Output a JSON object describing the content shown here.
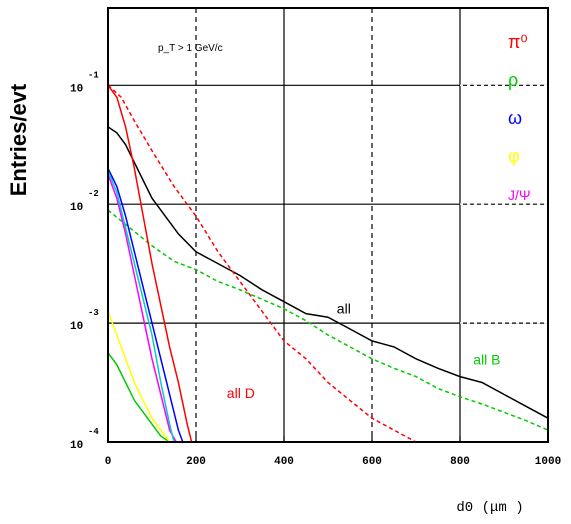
{
  "chart_data": {
    "type": "line",
    "title": "",
    "xlabel": "d0  (μm )",
    "ylabel": "Entries/evt",
    "xlim": [
      0,
      1000
    ],
    "ylim_log10": [
      -4,
      -0.35
    ],
    "y_scale": "log",
    "grid": true,
    "x_ticks": [
      "0",
      "200",
      "400",
      "600",
      "800",
      "1000"
    ],
    "y_ticks": [
      {
        "value": -4,
        "mantissa": "10",
        "exponent": "-4"
      },
      {
        "value": -3,
        "mantissa": "10",
        "exponent": "-3"
      },
      {
        "value": -2,
        "mantissa": "10",
        "exponent": "-2"
      },
      {
        "value": -1,
        "mantissa": "10",
        "exponent": "-1"
      }
    ],
    "cut_label": "p_T > 1 GeV/c",
    "legend": [
      {
        "label": "π⁰",
        "color": "#ff0000"
      },
      {
        "label": "ρ",
        "color": "#00cc00"
      },
      {
        "label": "ω",
        "color": "#0000ff"
      },
      {
        "label": "φ",
        "color": "#ffff00"
      },
      {
        "label": "J/Ψ",
        "color": "#ff00ff"
      }
    ],
    "series": [
      {
        "name": "all",
        "color": "#000000",
        "dash": "",
        "x": [
          0,
          20,
          40,
          60,
          80,
          100,
          130,
          160,
          200,
          250,
          300,
          350,
          400,
          450,
          500,
          550,
          600,
          650,
          700,
          750,
          800,
          850,
          900,
          950,
          1000
        ],
        "y": [
          -1.35,
          -1.4,
          -1.5,
          -1.65,
          -1.8,
          -1.95,
          -2.1,
          -2.25,
          -2.4,
          -2.5,
          -2.6,
          -2.72,
          -2.82,
          -2.92,
          -2.95,
          -3.05,
          -3.15,
          -3.2,
          -3.3,
          -3.38,
          -3.45,
          -3.5,
          -3.6,
          -3.7,
          -3.8
        ]
      },
      {
        "name": "all B",
        "color": "#00cc00",
        "dash": "4,3",
        "x": [
          0,
          50,
          100,
          150,
          200,
          250,
          300,
          350,
          400,
          450,
          500,
          550,
          600,
          650,
          700,
          750,
          800,
          850,
          900,
          950,
          1000
        ],
        "y": [
          -2.05,
          -2.2,
          -2.35,
          -2.48,
          -2.55,
          -2.65,
          -2.72,
          -2.8,
          -2.88,
          -2.98,
          -3.1,
          -3.2,
          -3.3,
          -3.38,
          -3.45,
          -3.55,
          -3.62,
          -3.68,
          -3.75,
          -3.82,
          -3.9
        ]
      },
      {
        "name": "all D",
        "color": "#ff0000",
        "dash": "4,3",
        "x": [
          0,
          30,
          60,
          100,
          150,
          200,
          250,
          300,
          350,
          400,
          450,
          500,
          550,
          600,
          650,
          700
        ],
        "y": [
          -1.0,
          -1.1,
          -1.3,
          -1.55,
          -1.85,
          -2.1,
          -2.4,
          -2.65,
          -2.9,
          -3.15,
          -3.3,
          -3.5,
          -3.65,
          -3.8,
          -3.9,
          -4.0
        ]
      },
      {
        "name": "π⁰",
        "color": "#ff0000",
        "dash": "",
        "x": [
          0,
          20,
          40,
          60,
          80,
          100,
          120,
          140,
          160,
          180,
          190
        ],
        "y": [
          -1.0,
          -1.1,
          -1.35,
          -1.7,
          -2.1,
          -2.5,
          -2.85,
          -3.2,
          -3.5,
          -3.85,
          -4.0
        ]
      },
      {
        "name": "ρ",
        "color": "#00cc00",
        "dash": "",
        "x": [
          0,
          20,
          40,
          60,
          80,
          100,
          120,
          140
        ],
        "y": [
          -3.25,
          -3.35,
          -3.5,
          -3.65,
          -3.75,
          -3.85,
          -3.95,
          -4.0
        ]
      },
      {
        "name": "ω",
        "color": "#0000ff",
        "dash": "",
        "x": [
          0,
          20,
          40,
          60,
          80,
          100,
          120,
          140,
          160,
          170
        ],
        "y": [
          -1.7,
          -1.85,
          -2.1,
          -2.4,
          -2.7,
          -3.0,
          -3.3,
          -3.6,
          -3.9,
          -4.0
        ]
      },
      {
        "name": "φ",
        "color": "#ffff00",
        "dash": "",
        "x": [
          0,
          20,
          40,
          60,
          80,
          100,
          120,
          140
        ],
        "y": [
          -2.9,
          -3.1,
          -3.3,
          -3.5,
          -3.65,
          -3.8,
          -3.9,
          -4.0
        ]
      },
      {
        "name": "J/Ψ",
        "color": "#ff00ff",
        "dash": "",
        "x": [
          0,
          20,
          40,
          60,
          80,
          100,
          120,
          140,
          155
        ],
        "y": [
          -1.75,
          -1.95,
          -2.25,
          -2.6,
          -2.95,
          -3.3,
          -3.6,
          -3.9,
          -4.0
        ]
      },
      {
        "name": "cyan",
        "color": "#00cccc",
        "dash": "",
        "x": [
          0,
          20,
          40,
          60,
          80,
          100,
          120,
          140,
          150
        ],
        "y": [
          -1.72,
          -1.9,
          -2.2,
          -2.5,
          -2.8,
          -3.1,
          -3.5,
          -3.85,
          -4.0
        ]
      }
    ],
    "annotations": [
      {
        "text": "all",
        "x": 520,
        "y": -2.92,
        "color": "#000000"
      },
      {
        "text": "all B",
        "x": 830,
        "y": -3.35,
        "color": "#00cc00"
      },
      {
        "text": "all D",
        "x": 270,
        "y": -3.63,
        "color": "#ff0000"
      }
    ]
  }
}
